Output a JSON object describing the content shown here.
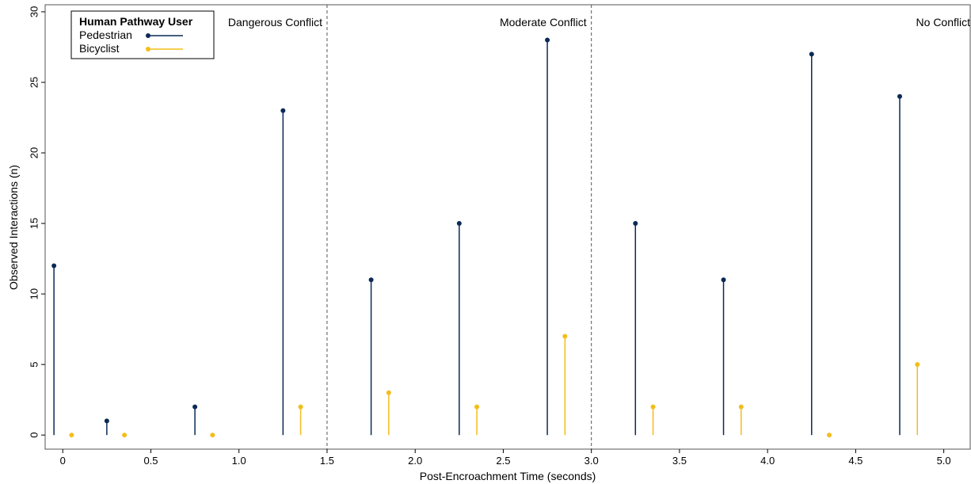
{
  "chart_data": {
    "type": "lollipop",
    "title": "",
    "xlabel": "Post-Encroachment Time (seconds)",
    "ylabel": "Observed Interactions (n)",
    "xlim": [
      -0.1,
      5.15
    ],
    "ylim": [
      -1,
      30.5
    ],
    "x_ticks": [
      0,
      0.5,
      1.0,
      1.5,
      2.0,
      2.5,
      3.0,
      3.5,
      4.0,
      4.5,
      5.0
    ],
    "x_tick_labels": [
      "0",
      "0.5",
      "1.0",
      "1.5",
      "2.0",
      "2.5",
      "3.0",
      "3.5",
      "4.0",
      "4.5",
      "5.0"
    ],
    "y_ticks": [
      0,
      5,
      10,
      15,
      20,
      25,
      30
    ],
    "y_tick_labels": [
      "0",
      "5",
      "10",
      "15",
      "20",
      "25",
      "30"
    ],
    "grid": false,
    "legend": {
      "title": "Human Pathway User",
      "placement": "top-left",
      "entries": [
        "Pedestrian",
        "Bicyclist"
      ]
    },
    "dividers": [
      1.5,
      3.0
    ],
    "regions": [
      {
        "label": "Dangerous Conflict"
      },
      {
        "label": "Moderate Conflict"
      },
      {
        "label": "No Conflict"
      }
    ],
    "series": [
      {
        "name": "Pedestrian",
        "color": "#0b2a55",
        "x": [
          -0.05,
          0.25,
          0.75,
          1.25,
          1.75,
          2.25,
          2.75,
          3.25,
          3.75,
          4.25,
          4.75
        ],
        "values": [
          12,
          1,
          2,
          23,
          11,
          15,
          28,
          15,
          11,
          27,
          24
        ]
      },
      {
        "name": "Bicyclist",
        "color": "#f3bd1a",
        "x": [
          0.05,
          0.35,
          0.85,
          1.35,
          1.85,
          2.35,
          2.85,
          3.35,
          3.85,
          4.35,
          4.85
        ],
        "values": [
          0,
          0,
          0,
          2,
          3,
          2,
          7,
          2,
          2,
          0,
          5
        ]
      }
    ]
  }
}
